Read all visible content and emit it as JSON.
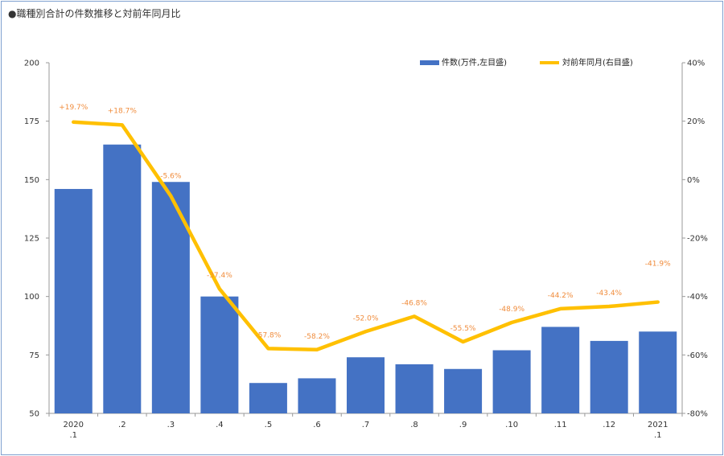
{
  "title": "●職種別合計の件数推移と対前年同月比",
  "colors": {
    "bar": "#4472c4",
    "line": "#ffc000",
    "label": "#f08c3c",
    "axis": "#333333"
  },
  "chart_data": {
    "type": "bar",
    "title": "●職種別合計の件数推移と対前年同月比",
    "categories": [
      "2020\n.1",
      ".2",
      ".3",
      ".4",
      ".5",
      ".6",
      ".7",
      ".8",
      ".9",
      ".10",
      ".11",
      ".12",
      "2021\n.1"
    ],
    "series": [
      {
        "name": "件数(万件,左目盛)",
        "type": "bar",
        "axis": "left",
        "values": [
          146,
          165,
          149,
          100,
          63,
          65,
          74,
          71,
          69,
          77,
          87,
          81,
          85
        ]
      },
      {
        "name": "対前年同月(右目盛)",
        "type": "line",
        "axis": "right",
        "values": [
          19.7,
          18.7,
          -5.6,
          -37.4,
          -57.8,
          -58.2,
          -52.0,
          -46.8,
          -55.5,
          -48.9,
          -44.2,
          -43.4,
          -41.9
        ],
        "labels": [
          "+19.7%",
          "+18.7%",
          "-5.6%",
          "-37.4%",
          "-57.8%",
          "-58.2%",
          "-52.0%",
          "-46.8%",
          "-55.5%",
          "-48.9%",
          "-44.2%",
          "-43.4%",
          "-41.9%"
        ]
      }
    ],
    "y_left": {
      "range": [
        50,
        200
      ],
      "ticks": [
        "50",
        "75",
        "100",
        "125",
        "150",
        "175",
        "200"
      ]
    },
    "y_right": {
      "range": [
        -80,
        40
      ],
      "ticks": [
        "-80%",
        "-60%",
        "-40%",
        "-20%",
        "0%",
        "20%",
        "40%"
      ]
    },
    "grid": false,
    "legend": "top-right"
  }
}
